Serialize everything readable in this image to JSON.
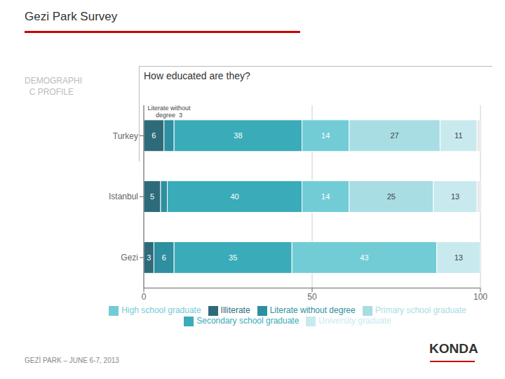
{
  "chart_data": {
    "type": "bar",
    "orientation": "horizontal",
    "stacked": true,
    "title": "Gezi Park Survey",
    "subtitle": "How educated are they?",
    "annotations": [
      "DEMOGRAPHI\n  C PROFILE",
      "GEZİ PARK – JUNE 6-7, 2013",
      "KONDA"
    ],
    "categories": [
      "Turkey",
      "Istanbul",
      "Gezi"
    ],
    "series": [
      {
        "name": "Illiterate",
        "color": "#2e6b7a",
        "values": [
          6,
          5,
          3
        ],
        "value_labels": [
          "6",
          "5",
          "3"
        ]
      },
      {
        "name": "Literate without degree",
        "color": "#2e8fa0",
        "values": [
          3,
          2,
          6
        ],
        "value_labels": [
          "Literate without\ndegree  3",
          null,
          "6"
        ]
      },
      {
        "name": "Secondary school graduate",
        "color": "#3aabb8",
        "values": [
          38,
          40,
          35
        ],
        "value_labels": [
          "38",
          "40",
          "35"
        ]
      },
      {
        "name": "High school graduate",
        "color": "#72ccd6",
        "values": [
          14,
          14,
          43
        ],
        "value_labels": [
          "14",
          "14",
          "43"
        ]
      },
      {
        "name": "Primary school graduate",
        "color": "#a8dde4",
        "values": [
          27,
          25,
          0
        ],
        "value_labels": [
          "27",
          "25",
          null
        ]
      },
      {
        "name": "University graduate",
        "color": "#c8eaee",
        "values": [
          11,
          13,
          13
        ],
        "value_labels": [
          "11",
          "13",
          "13"
        ]
      },
      {
        "color": "#e8e8e8",
        "values": [
          1,
          1,
          0
        ],
        "value_labels": [
          null,
          null,
          null
        ]
      }
    ],
    "xlim": [
      0,
      100
    ],
    "xticks": [
      0,
      50,
      100
    ],
    "grid": true,
    "legend": "bottom",
    "data_labels": true
  }
}
